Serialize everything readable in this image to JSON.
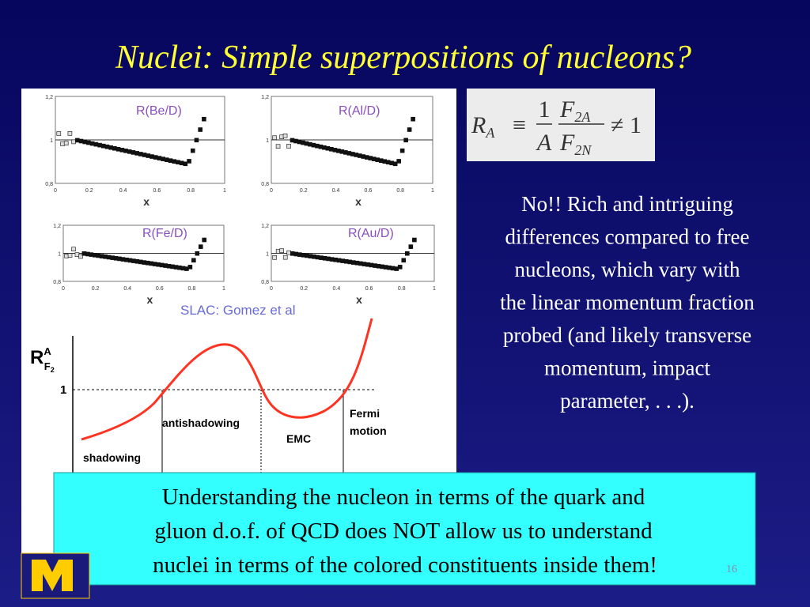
{
  "title": "Nuclei: Simple superpositions of nucleons?",
  "figure": {
    "panels": [
      "R(Be/D)",
      "R(Al/D)",
      "R(Fe/D)",
      "R(Au/D)"
    ],
    "yticks": [
      "1,2",
      "1",
      "0,8"
    ],
    "xticks": [
      "0",
      "0.2",
      "0.4",
      "0.6",
      "0.8",
      "1"
    ],
    "xlabel": "x",
    "caption": "SLAC: Gomez et al",
    "schematic": {
      "ylabel": "R",
      "ylabel_sup": "A",
      "ylabel_sub": "F",
      "ylabel_subsub": "2",
      "one": "1",
      "regions": [
        "shadowing",
        "antishadowing",
        "EMC",
        "Fermi",
        "motion"
      ]
    }
  },
  "formula": {
    "lhs": "R",
    "lhs_sub": "A",
    "equiv": "≡",
    "num1": "1",
    "den1": "A",
    "num2": "F",
    "num2_sub": "2A",
    "den2": "F",
    "den2_sub": "2N",
    "rhs": "≠ 1"
  },
  "body": [
    "No!!  Rich and intriguing",
    "differences compared to free",
    "nucleons, which vary with",
    "the linear momentum fraction",
    "probed (and likely transverse",
    "momentum, impact",
    "parameter, . . .)."
  ],
  "box": [
    "Understanding the nucleon in terms of the quark and",
    "gluon d.o.f. of QCD does NOT allow us to understand",
    "nuclei in terms of the colored constituents inside them!"
  ],
  "page_number": "16"
}
